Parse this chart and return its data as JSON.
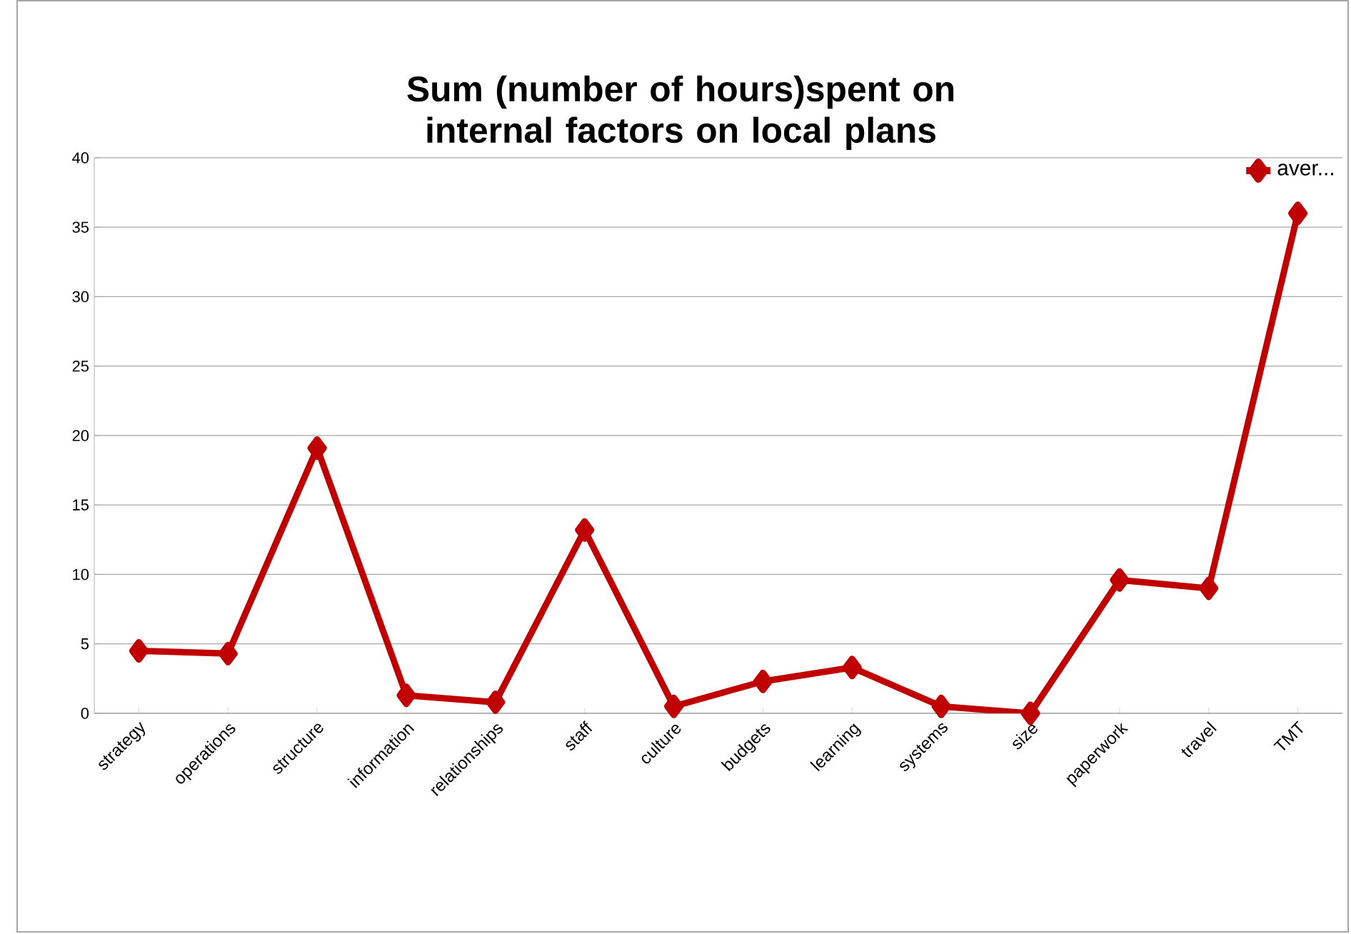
{
  "chart_data": {
    "type": "line",
    "title": "Sum (number of hours)spent on internal factors on local plans",
    "categories": [
      "strategy",
      "operations",
      "structure",
      "information",
      "relationships",
      "staff",
      "culture",
      "budgets",
      "learning",
      "systems",
      "size",
      "paperwork",
      "travel",
      "TMT"
    ],
    "series": [
      {
        "name": "aver...",
        "color": "#c00000",
        "values": [
          4.5,
          4.3,
          19.1,
          1.3,
          0.8,
          13.2,
          0.5,
          2.3,
          3.3,
          0.5,
          0.0,
          9.6,
          9.0,
          36.0
        ]
      }
    ],
    "ylim": [
      0,
      40
    ],
    "yticks": [
      0,
      5,
      10,
      15,
      20,
      25,
      30,
      35,
      40
    ],
    "grid": "y",
    "legend": "top right",
    "marker": "diamond",
    "line_style": "solid"
  }
}
